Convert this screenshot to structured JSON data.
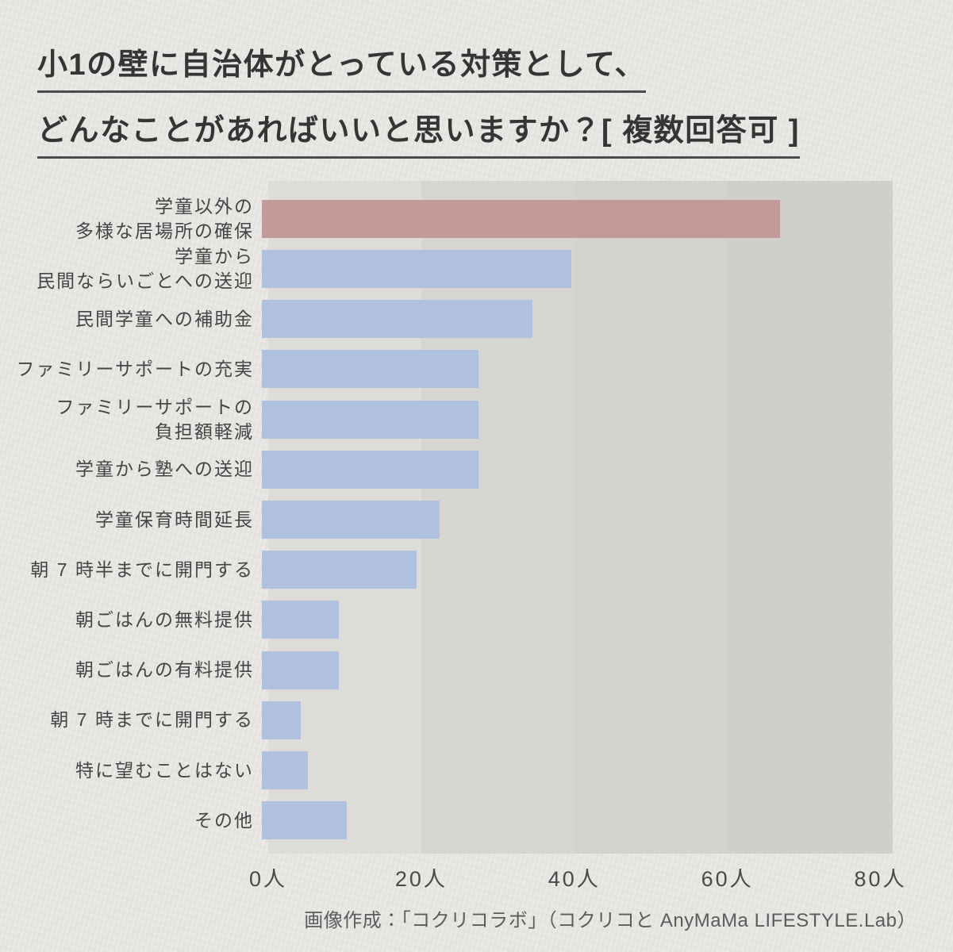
{
  "page": {
    "background_color": "#e9e7e4",
    "title": {
      "line1": "小1の壁に自治体がとっている対策として、",
      "line2": "どんなことがあればいいと思いますか？[ 複数回答可 ]"
    },
    "credit": "画像作成：「コクリコラボ」（コクリコと AnyMaMa LIFESTYLE.Lab）"
  },
  "chart_data": {
    "type": "bar",
    "orientation": "horizontal",
    "title": "小1の壁に自治体がとっている対策として、どんなことがあればいいと思いますか？[ 複数回答可 ]",
    "categories": [
      "学童以外の\n多様な居場所の確保",
      "学童から\n民間ならいごとへの送迎",
      "民間学童への補助金",
      "ファミリーサポートの充実",
      "ファミリーサポートの\n負担額軽減",
      "学童から塾への送迎",
      "学童保育時間延長",
      "朝 7 時半までに開門する",
      "朝ごはんの無料提供",
      "朝ごはんの有料提供",
      "朝 7 時までに開門する",
      "特に望むことはない",
      "その他"
    ],
    "values": [
      67,
      40,
      35,
      28,
      28,
      28,
      23,
      20,
      10,
      10,
      5,
      6,
      11
    ],
    "unit": "人",
    "xlabel": "",
    "ylabel": "",
    "xlim": [
      0,
      81.6
    ],
    "x_ticks": [
      {
        "value": 0,
        "label": "0人"
      },
      {
        "value": 20,
        "label": "20人"
      },
      {
        "value": 40,
        "label": "40人"
      },
      {
        "value": 60,
        "label": "60人"
      },
      {
        "value": 80,
        "label": "80人"
      }
    ],
    "legend": "none",
    "grid": "column-bands",
    "colors": {
      "bar": "#afc1df",
      "highlight": "#c29a9a",
      "highlight_index": 0,
      "plot_bands": [
        "#dedcd8",
        "#d7d5d1",
        "#d4d2ce",
        "#d1cfcb"
      ],
      "band_step": 20
    }
  }
}
